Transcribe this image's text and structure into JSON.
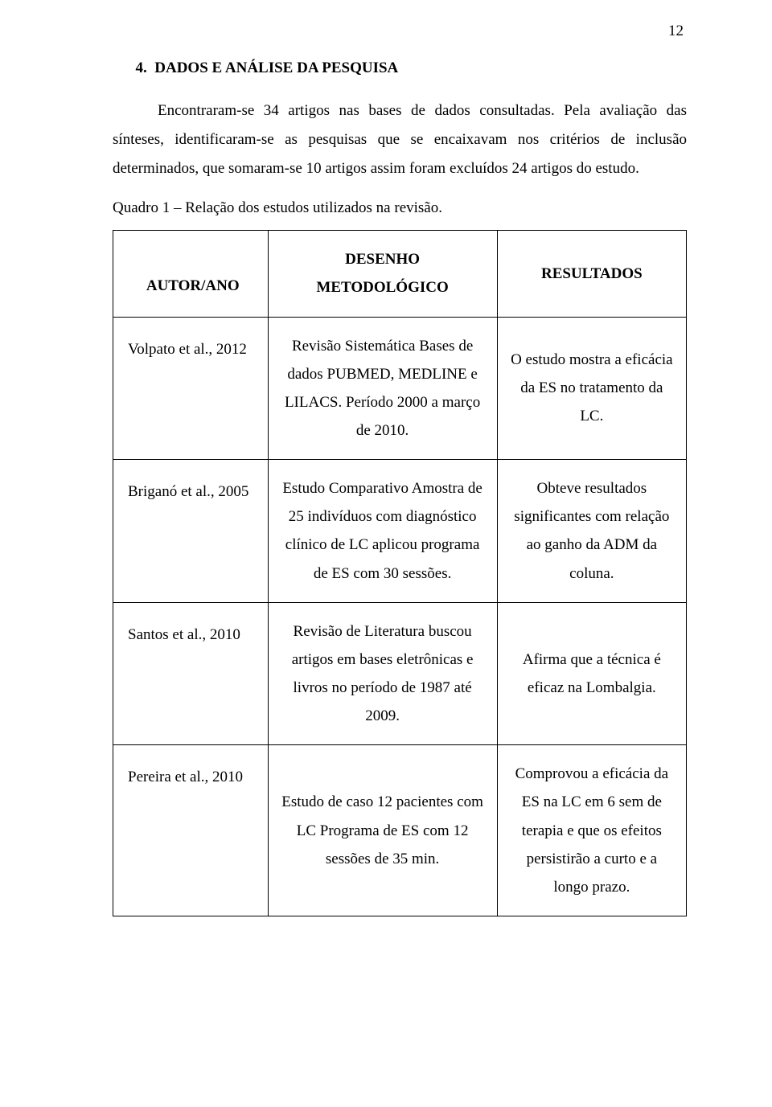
{
  "page_number": "12",
  "section_number": "4.",
  "section_title": "DADOS E ANÁLISE DA PESQUISA",
  "paragraph1": "Encontraram-se 34 artigos nas bases de dados consultadas. Pela avaliação das sínteses, identificaram-se as pesquisas que se encaixavam nos critérios de inclusão determinados, que somaram-se 10 artigos assim foram excluídos 24 artigos do estudo.",
  "caption": "Quadro 1 – Relação dos estudos utilizados na revisão.",
  "table": {
    "columns": [
      "AUTOR/ANO",
      "DESENHO METODOLÓGICO",
      "RESULTADOS"
    ],
    "header_col2_line1": "DESENHO",
    "header_col2_line2": "METODOLÓGICO",
    "rows": [
      {
        "author": "Volpato et al., 2012",
        "method": "Revisão Sistemática Bases de dados PUBMED, MEDLINE e LILACS. Período 2000 a março de 2010.",
        "result": "O estudo mostra a eficácia da ES no tratamento da LC."
      },
      {
        "author": "Briganó et al., 2005",
        "method": "Estudo Comparativo Amostra de 25 indivíduos com diagnóstico clínico de LC aplicou programa de ES com 30 sessões.",
        "result": "Obteve resultados significantes com relação ao ganho da ADM da coluna."
      },
      {
        "author": "Santos et al., 2010",
        "method": "Revisão de Literatura buscou artigos em bases eletrônicas e livros no período de 1987 até 2009.",
        "result": "Afirma que a técnica é eficaz na Lombalgia."
      },
      {
        "author": "Pereira et al., 2010",
        "method": "Estudo de caso 12 pacientes com LC Programa de ES com 12 sessões de 35 min.",
        "result": "Comprovou a eficácia da ES na LC em 6 sem de terapia e que os efeitos persistirão a curto e a longo prazo."
      }
    ]
  },
  "colors": {
    "text": "#000000",
    "background": "#ffffff",
    "border": "#000000"
  },
  "typography": {
    "font_family": "Times New Roman",
    "body_size_pt": 12,
    "line_height": 1.9
  }
}
